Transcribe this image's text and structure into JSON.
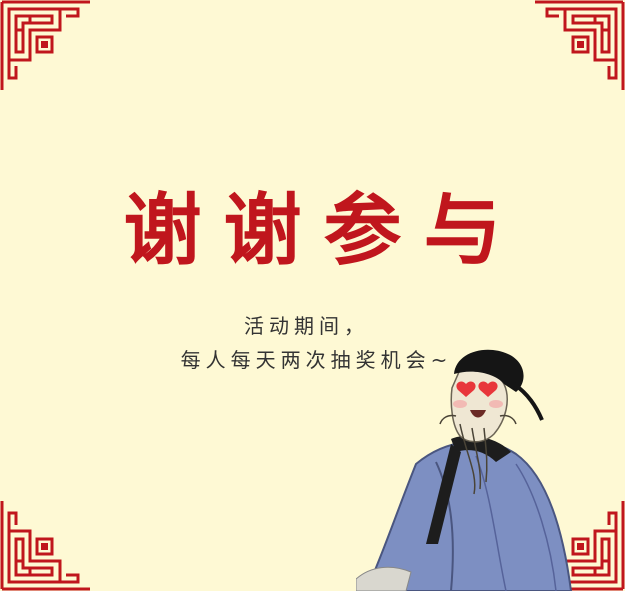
{
  "title": "谢谢参与",
  "message": {
    "line1": "活动期间，",
    "line2": "每人每天两次抽奖机会~"
  },
  "colors": {
    "background": "#fef9d4",
    "accent": "#c0161d",
    "text": "#333333"
  },
  "icons": {
    "corner": "chinese-lattice-corner-icon",
    "figure": "scholar-heart-eyes-illustration"
  }
}
